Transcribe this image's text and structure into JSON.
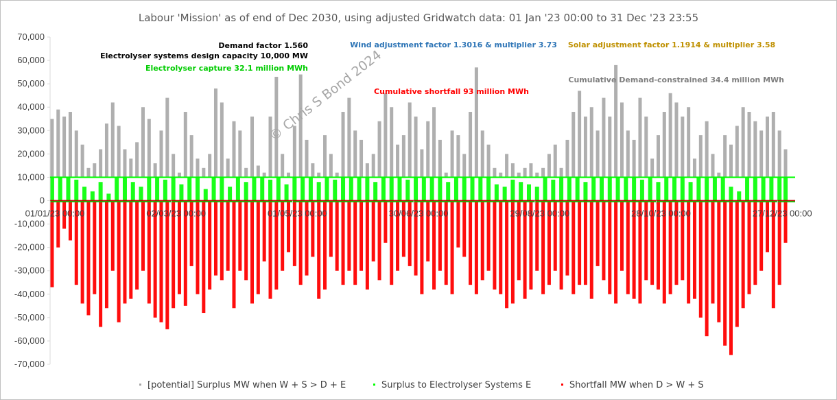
{
  "chart_data": {
    "type": "scatter",
    "title": "Labour 'Mission' as of end of Dec 2030, using adjusted Gridwatch data:  01 Jan '23 00:00 to 31 Dec '23 23:55",
    "xlabel": "",
    "ylabel": "",
    "ylim": [
      -70000,
      70000
    ],
    "yticks": [
      70000,
      60000,
      50000,
      40000,
      30000,
      20000,
      10000,
      0,
      -10000,
      -20000,
      -30000,
      -40000,
      -50000,
      -60000,
      -70000
    ],
    "ytick_labels": [
      "70,000",
      "60,000",
      "50,000",
      "40,000",
      "30,000",
      "20,000",
      "10,000",
      "0",
      "-10,000",
      "-20,000",
      "-30,000",
      "-40,000",
      "-50,000",
      "-60,000",
      "-70,000"
    ],
    "x_range": [
      "2023-01-01",
      "2023-12-31"
    ],
    "xticks": [
      {
        "date": "2023-01-01",
        "label": "01/01/23 00:00"
      },
      {
        "date": "2023-03-02",
        "label": "02/03/23 00:00"
      },
      {
        "date": "2023-05-01",
        "label": "01/05/23 00:00"
      },
      {
        "date": "2023-06-30",
        "label": "30/06/23 00:00"
      },
      {
        "date": "2023-08-29",
        "label": "29/08/23 00:00"
      },
      {
        "date": "2023-10-28",
        "label": "28/10/23 00:00"
      },
      {
        "date": "2023-12-27",
        "label": "27/12/23 00:00"
      }
    ],
    "grid": false,
    "legend_position": "bottom",
    "annotations": [
      {
        "text": "Demand factor 1.560",
        "color": "#000000"
      },
      {
        "text": "Electrolyser systems design capacity 10,000 MW",
        "color": "#000000"
      },
      {
        "text": "Electrolyser capture 32.1 million MWh",
        "color": "#00cc00"
      },
      {
        "text": "Wind adjustment factor 1.3016 & multiplier 3.73",
        "color": "#2e75b6"
      },
      {
        "text": "Solar adjustment factor 1.1914 & multiplier 3.58",
        "color": "#bf9000"
      },
      {
        "text": "Cumulative Demand-constrained 34.4 million MWh",
        "color": "#7f7f7f"
      },
      {
        "text": "Cumulative shortfall 93 million MWh",
        "color": "#ff0000"
      }
    ],
    "watermark": "© Chris S Bond  2024",
    "electrolyser_capacity": 10000,
    "series": [
      {
        "name": "[potential] Surplus MW when W + S > D + E",
        "color": "#a6a6a6",
        "dates": [
          "2023-01-02",
          "2023-01-05",
          "2023-01-08",
          "2023-01-11",
          "2023-01-14",
          "2023-01-17",
          "2023-01-20",
          "2023-01-23",
          "2023-01-26",
          "2023-01-29",
          "2023-02-01",
          "2023-02-04",
          "2023-02-07",
          "2023-02-10",
          "2023-02-13",
          "2023-02-16",
          "2023-02-19",
          "2023-02-22",
          "2023-02-25",
          "2023-02-28",
          "2023-03-03",
          "2023-03-06",
          "2023-03-09",
          "2023-03-12",
          "2023-03-15",
          "2023-03-18",
          "2023-03-21",
          "2023-03-24",
          "2023-03-27",
          "2023-03-30",
          "2023-04-02",
          "2023-04-05",
          "2023-04-08",
          "2023-04-11",
          "2023-04-14",
          "2023-04-17",
          "2023-04-20",
          "2023-04-23",
          "2023-04-26",
          "2023-04-29",
          "2023-05-02",
          "2023-05-05",
          "2023-05-08",
          "2023-05-11",
          "2023-05-14",
          "2023-05-17",
          "2023-05-20",
          "2023-05-23",
          "2023-05-26",
          "2023-05-29",
          "2023-06-01",
          "2023-06-04",
          "2023-06-07",
          "2023-06-10",
          "2023-06-13",
          "2023-06-16",
          "2023-06-19",
          "2023-06-22",
          "2023-06-25",
          "2023-06-28",
          "2023-07-01",
          "2023-07-04",
          "2023-07-07",
          "2023-07-10",
          "2023-07-13",
          "2023-07-16",
          "2023-07-19",
          "2023-07-22",
          "2023-07-25",
          "2023-07-28",
          "2023-07-31",
          "2023-08-03",
          "2023-08-06",
          "2023-08-09",
          "2023-08-12",
          "2023-08-15",
          "2023-08-18",
          "2023-08-21",
          "2023-08-24",
          "2023-08-27",
          "2023-08-30",
          "2023-09-02",
          "2023-09-05",
          "2023-09-08",
          "2023-09-11",
          "2023-09-14",
          "2023-09-17",
          "2023-09-20",
          "2023-09-23",
          "2023-09-26",
          "2023-09-29",
          "2023-10-02",
          "2023-10-05",
          "2023-10-08",
          "2023-10-11",
          "2023-10-14",
          "2023-10-17",
          "2023-10-20",
          "2023-10-23",
          "2023-10-26",
          "2023-10-29",
          "2023-11-01",
          "2023-11-04",
          "2023-11-07",
          "2023-11-10",
          "2023-11-13",
          "2023-11-16",
          "2023-11-19",
          "2023-11-22",
          "2023-11-25",
          "2023-11-28",
          "2023-12-01",
          "2023-12-04",
          "2023-12-07",
          "2023-12-10",
          "2023-12-13",
          "2023-12-16",
          "2023-12-19",
          "2023-12-22",
          "2023-12-25",
          "2023-12-28",
          "2023-12-31"
        ],
        "values": [
          35000,
          39000,
          36000,
          38000,
          30000,
          24000,
          14000,
          16000,
          22000,
          33000,
          42000,
          32000,
          22000,
          18000,
          25000,
          40000,
          35000,
          16000,
          30000,
          44000,
          20000,
          12000,
          38000,
          28000,
          18000,
          14000,
          20000,
          48000,
          42000,
          18000,
          34000,
          30000,
          14000,
          36000,
          15000,
          12000,
          36000,
          53000,
          20000,
          12000,
          32000,
          54000,
          26000,
          16000,
          12000,
          28000,
          20000,
          12000,
          38000,
          44000,
          30000,
          26000,
          16000,
          20000,
          34000,
          46000,
          40000,
          24000,
          28000,
          42000,
          36000,
          22000,
          34000,
          40000,
          26000,
          12000,
          30000,
          28000,
          20000,
          38000,
          57000,
          30000,
          24000,
          14000,
          12000,
          20000,
          16000,
          12000,
          14000,
          16000,
          12000,
          14000,
          20000,
          24000,
          14000,
          26000,
          38000,
          47000,
          36000,
          40000,
          30000,
          44000,
          36000,
          58000,
          42000,
          30000,
          26000,
          44000,
          36000,
          18000,
          28000,
          38000,
          46000,
          42000,
          36000,
          40000,
          18000,
          28000,
          34000,
          20000,
          12000,
          28000,
          24000,
          32000,
          40000,
          38000,
          34000,
          30000,
          36000,
          38000,
          30000,
          22000
        ]
      },
      {
        "name": "Surplus to Electrolyser Systems E",
        "color": "#00ff00",
        "dates": [
          "2023-01-02",
          "2023-01-06",
          "2023-01-10",
          "2023-01-14",
          "2023-01-18",
          "2023-01-22",
          "2023-01-26",
          "2023-01-30",
          "2023-02-03",
          "2023-02-07",
          "2023-02-11",
          "2023-02-15",
          "2023-02-19",
          "2023-02-23",
          "2023-02-27",
          "2023-03-03",
          "2023-03-07",
          "2023-03-11",
          "2023-03-15",
          "2023-03-19",
          "2023-03-23",
          "2023-03-27",
          "2023-03-31",
          "2023-04-04",
          "2023-04-08",
          "2023-04-12",
          "2023-04-16",
          "2023-04-20",
          "2023-04-24",
          "2023-04-28",
          "2023-05-02",
          "2023-05-06",
          "2023-05-10",
          "2023-05-14",
          "2023-05-18",
          "2023-05-22",
          "2023-05-26",
          "2023-05-30",
          "2023-06-03",
          "2023-06-07",
          "2023-06-11",
          "2023-06-15",
          "2023-06-19",
          "2023-06-23",
          "2023-06-27",
          "2023-07-01",
          "2023-07-05",
          "2023-07-09",
          "2023-07-13",
          "2023-07-17",
          "2023-07-21",
          "2023-07-25",
          "2023-07-29",
          "2023-08-02",
          "2023-08-06",
          "2023-08-10",
          "2023-08-14",
          "2023-08-18",
          "2023-08-22",
          "2023-08-26",
          "2023-08-30",
          "2023-09-03",
          "2023-09-07",
          "2023-09-11",
          "2023-09-15",
          "2023-09-19",
          "2023-09-23",
          "2023-09-27",
          "2023-10-01",
          "2023-10-05",
          "2023-10-09",
          "2023-10-13",
          "2023-10-17",
          "2023-10-21",
          "2023-10-25",
          "2023-10-29",
          "2023-11-02",
          "2023-11-06",
          "2023-11-10",
          "2023-11-14",
          "2023-11-18",
          "2023-11-22",
          "2023-11-26",
          "2023-11-30",
          "2023-12-04",
          "2023-12-08",
          "2023-12-12",
          "2023-12-16",
          "2023-12-20",
          "2023-12-24",
          "2023-12-28",
          "2023-12-31"
        ],
        "values": [
          10000,
          10000,
          10000,
          9000,
          6000,
          4000,
          8000,
          3000,
          10000,
          10000,
          8000,
          6000,
          10000,
          10000,
          9000,
          10000,
          7000,
          10000,
          10000,
          5000,
          10000,
          10000,
          6000,
          10000,
          8000,
          10000,
          10000,
          9000,
          10000,
          7000,
          10000,
          10000,
          10000,
          8000,
          10000,
          9000,
          10000,
          10000,
          10000,
          10000,
          8000,
          10000,
          10000,
          10000,
          9000,
          10000,
          10000,
          10000,
          10000,
          8000,
          10000,
          10000,
          10000,
          10000,
          10000,
          7000,
          6000,
          9000,
          8000,
          7000,
          6000,
          10000,
          9000,
          10000,
          10000,
          10000,
          8000,
          10000,
          10000,
          10000,
          10000,
          10000,
          10000,
          9000,
          10000,
          8000,
          10000,
          10000,
          10000,
          8000,
          10000,
          10000,
          10000,
          10000,
          6000,
          4000,
          10000,
          10000,
          10000,
          10000,
          10000,
          10000
        ]
      },
      {
        "name": "Shortfall MW when D > W + S",
        "color": "#ff0000",
        "dates": [
          "2023-01-02",
          "2023-01-05",
          "2023-01-08",
          "2023-01-11",
          "2023-01-14",
          "2023-01-17",
          "2023-01-20",
          "2023-01-23",
          "2023-01-26",
          "2023-01-29",
          "2023-02-01",
          "2023-02-04",
          "2023-02-07",
          "2023-02-10",
          "2023-02-13",
          "2023-02-16",
          "2023-02-19",
          "2023-02-22",
          "2023-02-25",
          "2023-02-28",
          "2023-03-03",
          "2023-03-06",
          "2023-03-09",
          "2023-03-12",
          "2023-03-15",
          "2023-03-18",
          "2023-03-21",
          "2023-03-24",
          "2023-03-27",
          "2023-03-30",
          "2023-04-02",
          "2023-04-05",
          "2023-04-08",
          "2023-04-11",
          "2023-04-14",
          "2023-04-17",
          "2023-04-20",
          "2023-04-23",
          "2023-04-26",
          "2023-04-29",
          "2023-05-02",
          "2023-05-05",
          "2023-05-08",
          "2023-05-11",
          "2023-05-14",
          "2023-05-17",
          "2023-05-20",
          "2023-05-23",
          "2023-05-26",
          "2023-05-29",
          "2023-06-01",
          "2023-06-04",
          "2023-06-07",
          "2023-06-10",
          "2023-06-13",
          "2023-06-16",
          "2023-06-19",
          "2023-06-22",
          "2023-06-25",
          "2023-06-28",
          "2023-07-01",
          "2023-07-04",
          "2023-07-07",
          "2023-07-10",
          "2023-07-13",
          "2023-07-16",
          "2023-07-19",
          "2023-07-22",
          "2023-07-25",
          "2023-07-28",
          "2023-07-31",
          "2023-08-03",
          "2023-08-06",
          "2023-08-09",
          "2023-08-12",
          "2023-08-15",
          "2023-08-18",
          "2023-08-21",
          "2023-08-24",
          "2023-08-27",
          "2023-08-30",
          "2023-09-02",
          "2023-09-05",
          "2023-09-08",
          "2023-09-11",
          "2023-09-14",
          "2023-09-17",
          "2023-09-20",
          "2023-09-23",
          "2023-09-26",
          "2023-09-29",
          "2023-10-02",
          "2023-10-05",
          "2023-10-08",
          "2023-10-11",
          "2023-10-14",
          "2023-10-17",
          "2023-10-20",
          "2023-10-23",
          "2023-10-26",
          "2023-10-29",
          "2023-11-01",
          "2023-11-04",
          "2023-11-07",
          "2023-11-10",
          "2023-11-13",
          "2023-11-16",
          "2023-11-19",
          "2023-11-22",
          "2023-11-25",
          "2023-11-28",
          "2023-12-01",
          "2023-12-04",
          "2023-12-07",
          "2023-12-10",
          "2023-12-13",
          "2023-12-16",
          "2023-12-19",
          "2023-12-22",
          "2023-12-25",
          "2023-12-28",
          "2023-12-31"
        ],
        "values": [
          -37000,
          -20000,
          -12000,
          -17000,
          -36000,
          -44000,
          -49000,
          -40000,
          -54000,
          -46000,
          -30000,
          -52000,
          -44000,
          -42000,
          -38000,
          -30000,
          -44000,
          -50000,
          -52000,
          -55000,
          -46000,
          -40000,
          -45000,
          -28000,
          -40000,
          -48000,
          -38000,
          -32000,
          -34000,
          -30000,
          -46000,
          -30000,
          -34000,
          -44000,
          -40000,
          -26000,
          -42000,
          -38000,
          -30000,
          -22000,
          -28000,
          -36000,
          -32000,
          -24000,
          -42000,
          -38000,
          -24000,
          -30000,
          -36000,
          -30000,
          -36000,
          -30000,
          -38000,
          -26000,
          -34000,
          -18000,
          -36000,
          -30000,
          -24000,
          -28000,
          -32000,
          -40000,
          -26000,
          -38000,
          -30000,
          -36000,
          -40000,
          -20000,
          -24000,
          -36000,
          -40000,
          -34000,
          -30000,
          -38000,
          -40000,
          -46000,
          -44000,
          -34000,
          -42000,
          -38000,
          -30000,
          -40000,
          -36000,
          -30000,
          -38000,
          -32000,
          -40000,
          -36000,
          -36000,
          -42000,
          -28000,
          -34000,
          -40000,
          -44000,
          -30000,
          -40000,
          -42000,
          -44000,
          -34000,
          -36000,
          -38000,
          -44000,
          -40000,
          -36000,
          -34000,
          -44000,
          -42000,
          -50000,
          -58000,
          -44000,
          -52000,
          -62000,
          -66000,
          -54000,
          -46000,
          -40000,
          -36000,
          -30000,
          -22000,
          -46000,
          -36000,
          -18000
        ]
      }
    ]
  }
}
